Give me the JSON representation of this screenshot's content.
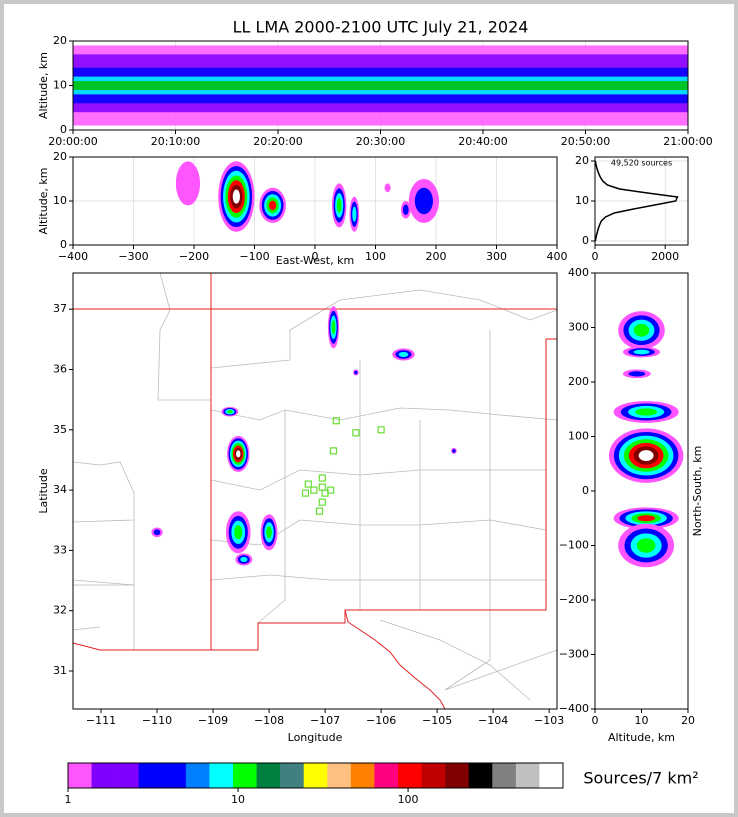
{
  "chart_data": [
    {
      "type": "time_height",
      "title": "LL LMA 2000-2100 UTC July 21, 2024",
      "y_label": "Altitude, km",
      "xlim": [
        0,
        60
      ],
      "xticks": [
        {
          "value": 0,
          "label": "20:00:00"
        },
        {
          "value": 10,
          "label": "20:10:00"
        },
        {
          "value": 20,
          "label": "20:20:00"
        },
        {
          "value": 30,
          "label": "20:30:00"
        },
        {
          "value": 40,
          "label": "20:40:00"
        },
        {
          "value": 50,
          "label": "20:50:00"
        },
        {
          "value": 60,
          "label": "21:00:00"
        }
      ],
      "ylim": [
        0,
        20
      ],
      "yticks": [
        0,
        10,
        20
      ],
      "grid": true,
      "bands": [
        {
          "color": "#ff55ff",
          "low": 1,
          "high": 19
        },
        {
          "color": "#8000ff",
          "low": 4,
          "high": 17
        },
        {
          "color": "#0000ff",
          "low": 6,
          "high": 14
        },
        {
          "color": "#00ffff",
          "low": 8,
          "high": 12
        },
        {
          "color": "#00c000",
          "low": 9,
          "high": 11
        }
      ]
    },
    {
      "type": "density",
      "x_label": "East-West, km",
      "y_label": "Altitude, km",
      "xlim": [
        -400,
        400
      ],
      "xticks": [
        {
          "value": -400,
          "label": "−400"
        },
        {
          "value": -300,
          "label": "−300"
        },
        {
          "value": -200,
          "label": "−200"
        },
        {
          "value": -100,
          "label": "−100"
        },
        0,
        100,
        200,
        300,
        400
      ],
      "ylim": [
        0,
        20
      ],
      "yticks": [
        0,
        10,
        20
      ],
      "grid": true,
      "layer_colors": [
        "#ff55ff",
        "#0000ff",
        "#00ffff",
        "#00ff00",
        "#ff0000",
        "#800000",
        "#ffffff"
      ],
      "blobs": [
        {
          "x": -130,
          "y": 11,
          "rx": 30,
          "ry": 8,
          "layers": 7
        },
        {
          "x": -70,
          "y": 9,
          "rx": 22,
          "ry": 4,
          "layers": 5
        },
        {
          "x": 40,
          "y": 9,
          "rx": 12,
          "ry": 5,
          "layers": 4
        },
        {
          "x": 65,
          "y": 7,
          "rx": 8,
          "ry": 4,
          "layers": 3
        },
        {
          "x": 180,
          "y": 10,
          "rx": 25,
          "ry": 5,
          "layers": 2
        },
        {
          "x": 150,
          "y": 8,
          "rx": 8,
          "ry": 2,
          "layers": 2
        },
        {
          "x": -210,
          "y": 14,
          "rx": 20,
          "ry": 5,
          "layers": 1
        },
        {
          "x": 120,
          "y": 13,
          "rx": 5,
          "ry": 1,
          "layers": 1
        }
      ]
    },
    {
      "type": "profile",
      "annotation": "49,520 sources",
      "xlim": [
        0,
        2650
      ],
      "xticks": [
        0,
        2000
      ],
      "ylim": [
        -1,
        21
      ],
      "yticks": [
        0,
        10,
        20
      ],
      "grid": true,
      "color": "#000000",
      "y": [
        0,
        1,
        2,
        3,
        4,
        5,
        6,
        7,
        8,
        9,
        10,
        11,
        12,
        13,
        14,
        15,
        16,
        17,
        18,
        19,
        20
      ],
      "values": [
        10,
        30,
        60,
        90,
        130,
        180,
        300,
        550,
        1100,
        1700,
        2300,
        2350,
        1500,
        700,
        350,
        220,
        150,
        100,
        60,
        30,
        10
      ]
    },
    {
      "type": "map",
      "x_label": "Longitude",
      "y_label": "Latitude",
      "xlim": [
        -111.5,
        -102.86
      ],
      "xticks": [
        {
          "value": -111,
          "label": "−111"
        },
        {
          "value": -110,
          "label": "−110"
        },
        {
          "value": -109,
          "label": "−109"
        },
        {
          "value": -108,
          "label": "−108"
        },
        {
          "value": -107,
          "label": "−107"
        },
        {
          "value": -106,
          "label": "−106"
        },
        {
          "value": -105,
          "label": "−105"
        },
        {
          "value": -104,
          "label": "−104"
        },
        {
          "value": -103,
          "label": "−103"
        }
      ],
      "ylim": [
        30.37,
        37.6
      ],
      "yticks": [
        31,
        32,
        33,
        34,
        35,
        36,
        37
      ],
      "layer_colors": [
        "#ff55ff",
        "#0000ff",
        "#00ffff",
        "#00ff00",
        "#ff0000",
        "#800000",
        "#ffffff"
      ],
      "blobs": [
        {
          "x": -106.85,
          "y": 36.7,
          "rx": 0.1,
          "ry": 0.35,
          "layers": 4
        },
        {
          "x": -105.6,
          "y": 36.25,
          "rx": 0.2,
          "ry": 0.1,
          "layers": 3
        },
        {
          "x": -108.7,
          "y": 35.3,
          "rx": 0.15,
          "ry": 0.08,
          "layers": 4
        },
        {
          "x": -108.55,
          "y": 34.6,
          "rx": 0.2,
          "ry": 0.3,
          "layers": 7
        },
        {
          "x": -108.55,
          "y": 33.3,
          "rx": 0.22,
          "ry": 0.35,
          "layers": 4
        },
        {
          "x": -108.0,
          "y": 33.3,
          "rx": 0.15,
          "ry": 0.3,
          "layers": 4
        },
        {
          "x": -108.45,
          "y": 32.85,
          "rx": 0.15,
          "ry": 0.1,
          "layers": 3
        },
        {
          "x": -104.7,
          "y": 34.65,
          "rx": 0.05,
          "ry": 0.05,
          "layers": 2
        },
        {
          "x": -110.0,
          "y": 33.3,
          "rx": 0.1,
          "ry": 0.08,
          "layers": 2
        },
        {
          "x": -106.45,
          "y": 35.95,
          "rx": 0.05,
          "ry": 0.05,
          "layers": 2
        }
      ],
      "station_color": "#66dd33",
      "stations": [
        [
          -106.8,
          35.15
        ],
        [
          -106.45,
          34.95
        ],
        [
          -106.0,
          35.0
        ],
        [
          -106.85,
          34.65
        ],
        [
          -107.05,
          34.2
        ],
        [
          -107.2,
          34.0
        ],
        [
          -107.3,
          34.1
        ],
        [
          -107.35,
          33.95
        ],
        [
          -107.05,
          34.05
        ],
        [
          -106.9,
          34.0
        ],
        [
          -107.05,
          33.8
        ],
        [
          -107.1,
          33.65
        ],
        [
          -107.0,
          33.95
        ]
      ]
    },
    {
      "type": "density",
      "x_label": "Altitude, km",
      "y_label": "North-South, km",
      "xlim": [
        0,
        20
      ],
      "xticks": [
        0,
        10,
        20
      ],
      "ylim": [
        -400,
        400
      ],
      "yticks": [
        {
          "value": -400,
          "label": "−400"
        },
        {
          "value": -300,
          "label": "−300"
        },
        {
          "value": -200,
          "label": "−200"
        },
        {
          "value": -100,
          "label": "−100"
        },
        0,
        100,
        200,
        300,
        400
      ],
      "layer_colors": [
        "#ff55ff",
        "#0000ff",
        "#00ffff",
        "#00ff00",
        "#ff0000",
        "#800000",
        "#ffffff"
      ],
      "blobs": [
        {
          "x": 11,
          "y": 65,
          "rx": 8,
          "ry": 50,
          "layers": 7
        },
        {
          "x": 11,
          "y": 145,
          "rx": 7,
          "ry": 20,
          "layers": 4
        },
        {
          "x": 10,
          "y": 295,
          "rx": 5,
          "ry": 35,
          "layers": 4
        },
        {
          "x": 10,
          "y": 255,
          "rx": 4,
          "ry": 10,
          "layers": 3
        },
        {
          "x": 9,
          "y": 215,
          "rx": 3,
          "ry": 8,
          "layers": 2
        },
        {
          "x": 11,
          "y": -50,
          "rx": 7,
          "ry": 20,
          "layers": 5
        },
        {
          "x": 11,
          "y": -100,
          "rx": 6,
          "ry": 40,
          "layers": 4
        }
      ]
    },
    {
      "type": "colorbar",
      "label": "Sources/7 km²",
      "log": true,
      "xlim": [
        1,
        815
      ],
      "xticks": [
        1,
        10,
        100
      ],
      "colors": [
        "#ff55ff",
        "#8000ff",
        "#8000ff",
        "#0000ff",
        "#0000ff",
        "#0080ff",
        "#00ffff",
        "#00ff00",
        "#008040",
        "#408080",
        "#ffff00",
        "#ffc080",
        "#ff8000",
        "#ff0080",
        "#ff0000",
        "#c00000",
        "#800000",
        "#000000",
        "#808080",
        "#c0c0c0",
        "#ffffff"
      ]
    }
  ]
}
